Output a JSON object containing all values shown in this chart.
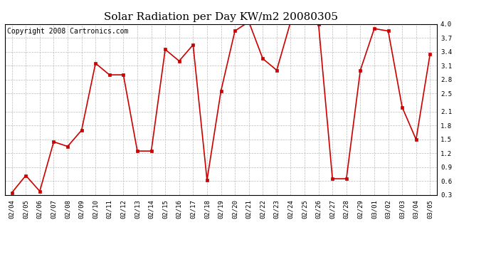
{
  "title": "Solar Radiation per Day KW/m2 20080305",
  "copyright": "Copyright 2008 Cartronics.com",
  "dates": [
    "02/04",
    "02/05",
    "02/06",
    "02/07",
    "02/08",
    "02/09",
    "02/10",
    "02/11",
    "02/12",
    "02/13",
    "02/14",
    "02/15",
    "02/16",
    "02/17",
    "02/18",
    "02/19",
    "02/20",
    "02/21",
    "02/22",
    "02/23",
    "02/24",
    "02/25",
    "02/26",
    "02/27",
    "02/28",
    "02/29",
    "03/01",
    "03/02",
    "03/03",
    "03/04",
    "03/05"
  ],
  "values": [
    0.35,
    0.72,
    0.38,
    1.45,
    1.35,
    1.7,
    3.15,
    2.9,
    2.9,
    1.25,
    1.25,
    3.45,
    3.2,
    3.55,
    0.62,
    2.55,
    3.85,
    4.05,
    3.25,
    3.0,
    4.05,
    4.05,
    4.0,
    0.65,
    0.65,
    3.0,
    3.9,
    3.85,
    2.2,
    1.5,
    3.35
  ],
  "line_color": "#cc0000",
  "marker": "s",
  "marker_size": 2.5,
  "ylim_min": 0.3,
  "ylim_max": 4.0,
  "yticks": [
    0.3,
    0.6,
    0.9,
    1.2,
    1.5,
    1.8,
    2.1,
    2.5,
    2.8,
    3.1,
    3.4,
    3.7,
    4.0
  ],
  "grid_color": "#bbbbbb",
  "background_color": "#ffffff",
  "title_fontsize": 11,
  "copyright_fontsize": 7,
  "tick_fontsize": 6.5,
  "linewidth": 1.2
}
